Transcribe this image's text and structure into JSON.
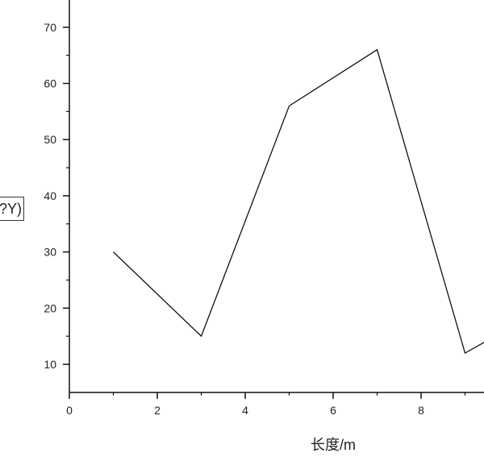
{
  "chart_data": {
    "type": "line",
    "title": "",
    "xlabel": "长度/m",
    "ylabel": "?Y)",
    "x": [
      1,
      3,
      5,
      7,
      9,
      10
    ],
    "series": [
      {
        "values": [
          30,
          15,
          56,
          66,
          12,
          16.4
        ],
        "color": "#111111"
      }
    ],
    "xlim": [
      0,
      9.52
    ],
    "ylim": [
      5,
      75
    ],
    "xticks": [
      0,
      2,
      4,
      6,
      8
    ],
    "yticks": [
      10,
      20,
      30,
      40,
      50,
      60,
      70
    ],
    "grid": false,
    "legend": "none"
  }
}
